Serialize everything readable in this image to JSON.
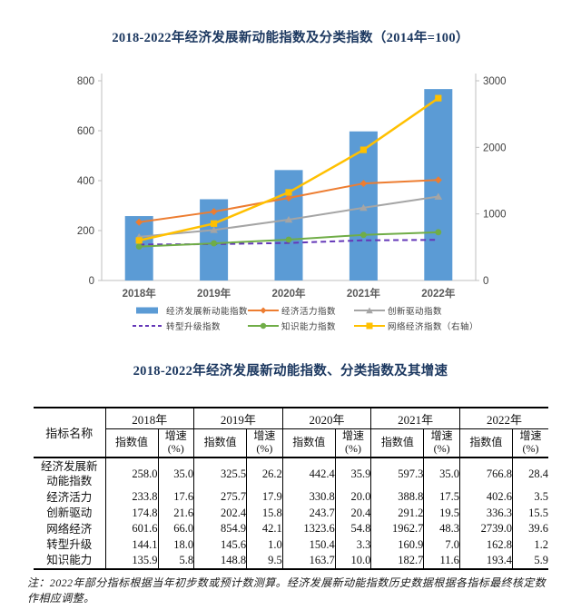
{
  "chart": {
    "title": "2018-2022年经济发展新动能指数及分类指数（2014年=100）",
    "title_color": "#1c3860"
  },
  "chart_data": {
    "type": "combo-bar-line",
    "title": "2018-2022年经济发展新动能指数及分类指数（2014年=100）",
    "categories": [
      "2018年",
      "2019年",
      "2020年",
      "2021年",
      "2022年"
    ],
    "series": [
      {
        "name": "经济发展新动能指数",
        "kind": "bar",
        "axis": "left",
        "color": "#5b9bd5",
        "values": [
          258.0,
          325.5,
          442.4,
          597.3,
          766.8
        ]
      },
      {
        "name": "经济活力指数",
        "kind": "line",
        "axis": "left",
        "color": "#ed7d31",
        "marker": "diamond",
        "values": [
          233.8,
          275.7,
          330.8,
          388.8,
          402.6
        ]
      },
      {
        "name": "创新驱动指数",
        "kind": "line",
        "axis": "left",
        "color": "#a5a5a5",
        "marker": "triangle",
        "values": [
          174.8,
          202.4,
          243.7,
          291.2,
          336.3
        ]
      },
      {
        "name": "转型升级指数",
        "kind": "line",
        "axis": "left",
        "color": "#6438b8",
        "dash": true,
        "values": [
          144.1,
          145.6,
          150.4,
          160.9,
          162.8
        ]
      },
      {
        "name": "知识能力指数",
        "kind": "line",
        "axis": "left",
        "color": "#70ad47",
        "marker": "circle",
        "values": [
          135.9,
          148.8,
          163.7,
          182.7,
          193.4
        ]
      },
      {
        "name": "网络经济指数（右轴）",
        "kind": "line",
        "axis": "right",
        "color": "#ffc000",
        "marker": "square",
        "values": [
          601.6,
          854.9,
          1323.6,
          1962.7,
          2739.0
        ]
      }
    ],
    "left_axis": {
      "ticks": [
        0,
        200,
        400,
        600,
        800
      ],
      "min": 0,
      "max": 800
    },
    "right_axis": {
      "ticks": [
        0,
        1000,
        2000,
        3000
      ],
      "min": 0,
      "max": 3000
    },
    "grid": false,
    "legend_position": "bottom",
    "axis_color": "#bfbfbf",
    "tick_text_color": "#404040",
    "xlabel_color": "#595959"
  },
  "table": {
    "title": "2018-2022年经济发展新动能指数、分类指数及其增速",
    "col_header_label": "指标名称",
    "years": [
      "2018年",
      "2019年",
      "2020年",
      "2021年",
      "2022年"
    ],
    "sub_headers": [
      "指数值",
      "增速\n(%)"
    ],
    "rows": [
      {
        "label": "经济发展新\n动能指数",
        "cells": [
          "258.0",
          "35.0",
          "325.5",
          "26.2",
          "442.4",
          "35.9",
          "597.3",
          "35.0",
          "766.8",
          "28.4"
        ]
      },
      {
        "label": "经济活力",
        "cells": [
          "233.8",
          "17.6",
          "275.7",
          "17.9",
          "330.8",
          "20.0",
          "388.8",
          "17.5",
          "402.6",
          "3.5"
        ]
      },
      {
        "label": "创新驱动",
        "cells": [
          "174.8",
          "21.6",
          "202.4",
          "15.8",
          "243.7",
          "20.4",
          "291.2",
          "19.5",
          "336.3",
          "15.5"
        ]
      },
      {
        "label": "网络经济",
        "cells": [
          "601.6",
          "66.0",
          "854.9",
          "42.1",
          "1323.6",
          "54.8",
          "1962.7",
          "48.3",
          "2739.0",
          "39.6"
        ]
      },
      {
        "label": "转型升级",
        "cells": [
          "144.1",
          "18.0",
          "145.6",
          "1.0",
          "150.4",
          "3.3",
          "160.9",
          "7.0",
          "162.8",
          "1.2"
        ]
      },
      {
        "label": "知识能力",
        "cells": [
          "135.9",
          "5.8",
          "148.8",
          "9.5",
          "163.7",
          "10.0",
          "182.7",
          "11.6",
          "193.4",
          "5.9"
        ]
      }
    ],
    "note": "注：2022年部分指标根据当年初步数或预计数测算。经济发展新动能指数历史数据根据各指标最终核定数作相应调整。"
  }
}
